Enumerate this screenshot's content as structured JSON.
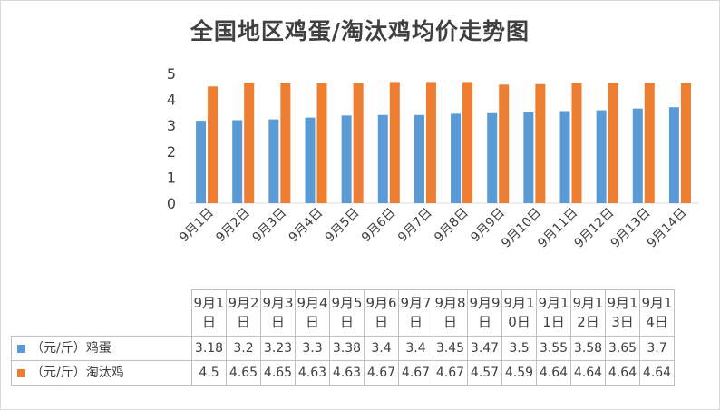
{
  "title": "全国地区鸡蛋/淘汰鸡均价走势图",
  "colors": {
    "egg": "#5b9bd5",
    "hen": "#ed7d31",
    "axis": "#d9d9d9",
    "text": "#404040"
  },
  "chart_data": {
    "type": "bar",
    "title": "全国地区鸡蛋/淘汰鸡均价走势图",
    "categories": [
      "9月1日",
      "9月2日",
      "9月3日",
      "9月4日",
      "9月5日",
      "9月6日",
      "9月7日",
      "9月8日",
      "9月9日",
      "9月10日",
      "9月11日",
      "9月12日",
      "9月13日",
      "9月14日"
    ],
    "series": [
      {
        "name": "（元/斤）鸡蛋",
        "color": "#5b9bd5",
        "values": [
          3.18,
          3.2,
          3.23,
          3.3,
          3.38,
          3.4,
          3.4,
          3.45,
          3.47,
          3.5,
          3.55,
          3.58,
          3.65,
          3.7
        ]
      },
      {
        "name": "（元/斤）淘汰鸡",
        "color": "#ed7d31",
        "values": [
          4.5,
          4.65,
          4.65,
          4.63,
          4.63,
          4.67,
          4.67,
          4.67,
          4.57,
          4.59,
          4.64,
          4.64,
          4.64,
          4.64
        ]
      }
    ],
    "yticks": [
      0,
      1,
      2,
      3,
      4,
      5
    ],
    "ylim": [
      0,
      5
    ],
    "grid": false,
    "legend": "data-table"
  },
  "table": {
    "rows": [
      {
        "label": "（元/斤）鸡蛋",
        "values": [
          "3.18",
          "3.2",
          "3.23",
          "3.3",
          "3.38",
          "3.4",
          "3.4",
          "3.45",
          "3.47",
          "3.5",
          "3.55",
          "3.58",
          "3.65",
          "3.7"
        ]
      },
      {
        "label": "（元/斤）淘汰鸡",
        "values": [
          "4.5",
          "4.65",
          "4.65",
          "4.63",
          "4.63",
          "4.67",
          "4.67",
          "4.67",
          "4.57",
          "4.59",
          "4.64",
          "4.64",
          "4.64",
          "4.64"
        ]
      }
    ]
  }
}
